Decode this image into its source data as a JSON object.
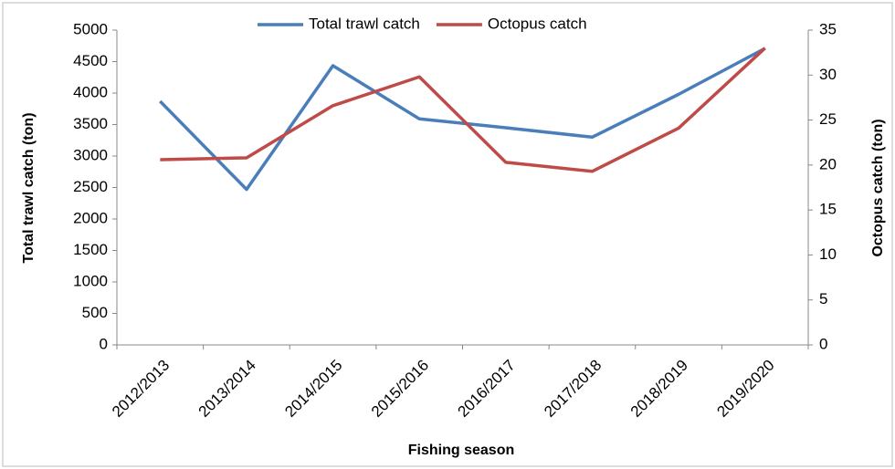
{
  "chart_data": {
    "type": "line",
    "categories": [
      "2012/2013",
      "2013/2014",
      "2014/2015",
      "2015/2016",
      "2016/2017",
      "2017/2018",
      "2018/2019",
      "2019/2020"
    ],
    "series": [
      {
        "name": "Total trawl catch",
        "color": "#4a7ebb",
        "values": [
          3870,
          2470,
          4435,
          3590,
          3450,
          3300,
          3980,
          4710
        ]
      },
      {
        "name": "Octopus catch",
        "color": "#be4b48",
        "axis": "y2",
        "values": [
          20.6,
          20.8,
          26.6,
          29.8,
          20.3,
          19.3,
          24.1,
          33
        ]
      }
    ],
    "x_label": "Fishing season",
    "y_label": "Total trawl catch (ton)",
    "y2_label": "Octopus catch (ton)",
    "ylim": [
      0,
      5000
    ],
    "yticks": [
      0,
      500,
      1000,
      1500,
      2000,
      2500,
      3000,
      3500,
      4000,
      4500,
      5000
    ],
    "y2lim": [
      0,
      35
    ],
    "y2ticks": [
      0,
      5,
      10,
      15,
      20,
      25,
      30,
      35
    ],
    "legend": "top",
    "grid": false
  }
}
